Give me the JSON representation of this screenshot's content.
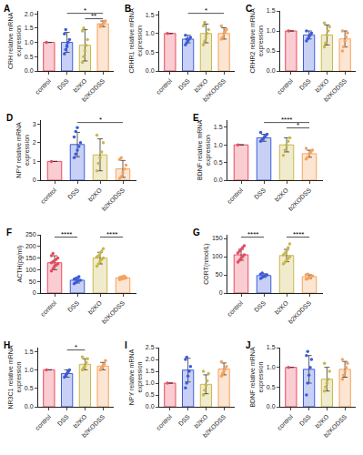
{
  "chart_data": [
    {
      "type": "bar",
      "label": "A",
      "y_label": "CRH relative mRNA expression",
      "categories": [
        "control",
        "DSS",
        "b2KO",
        "b2KODSS"
      ],
      "values": [
        1.0,
        1.0,
        0.9,
        1.65
      ],
      "errors": [
        0,
        0.35,
        0.55,
        0.1
      ],
      "points": [
        [
          1.0
        ],
        [
          0.6,
          0.75,
          0.85,
          1.0,
          1.1,
          1.3,
          1.45,
          0.9
        ],
        [
          0.3,
          0.5,
          0.7,
          0.9,
          1.1,
          1.4,
          1.5
        ],
        [
          1.55,
          1.6,
          1.65,
          1.7,
          1.75,
          1.6
        ]
      ],
      "colors": [
        "#e84a5f",
        "#3b5bdb",
        "#c9b84a",
        "#f5a25d"
      ],
      "marker": "circle",
      "grid": false,
      "ylim": [
        0,
        2.1
      ],
      "yticks": [
        {
          "value": 0,
          "label": "0.0"
        },
        {
          "value": 0.5,
          "label": "0.5"
        },
        {
          "value": 1,
          "label": "1.0"
        },
        {
          "value": 1.5,
          "label": "1.5"
        },
        {
          "value": 2,
          "label": "2.0"
        }
      ],
      "comparisons": [
        {
          "from": "b2KO",
          "to": "b2KODSS",
          "label": "**"
        },
        {
          "from": "DSS",
          "to": "b2KODSS",
          "label": "*"
        }
      ]
    },
    {
      "type": "bar",
      "label": "B",
      "y_label": "CRHR1 relative mRNA expression",
      "categories": [
        "control",
        "DSS",
        "b2KO",
        "b2KODSS"
      ],
      "values": [
        1.0,
        0.85,
        1.0,
        1.0
      ],
      "errors": [
        0,
        0.1,
        0.25,
        0.15
      ],
      "points": [
        [
          1.0
        ],
        [
          0.7,
          0.75,
          0.8,
          0.85,
          0.9,
          0.95,
          0.85
        ],
        [
          0.7,
          0.8,
          0.9,
          1.0,
          1.1,
          1.2,
          1.3
        ],
        [
          0.85,
          0.9,
          1.0,
          1.05,
          1.1,
          1.2
        ]
      ],
      "colors": [
        "#e84a5f",
        "#3b5bdb",
        "#c9b84a",
        "#f5a25d"
      ],
      "marker": "circle",
      "grid": false,
      "ylim": [
        0,
        1.6
      ],
      "yticks": [
        {
          "value": 0,
          "label": "0.0"
        },
        {
          "value": 0.5,
          "label": "0.5"
        },
        {
          "value": 1,
          "label": "1.0"
        },
        {
          "value": 1.5,
          "label": "1.5"
        }
      ],
      "comparisons": [
        {
          "from": "DSS",
          "to": "b2KODSS",
          "label": "*"
        }
      ]
    },
    {
      "type": "bar",
      "label": "C",
      "y_label": "CRHR2 relative mRNA expression",
      "categories": [
        "control",
        "DSS",
        "b2KO",
        "b2KODSS"
      ],
      "values": [
        1.0,
        0.9,
        0.9,
        0.8
      ],
      "errors": [
        0,
        0.1,
        0.25,
        0.2
      ],
      "points": [
        [
          1.0
        ],
        [
          0.75,
          0.8,
          0.85,
          0.9,
          0.95,
          1.0
        ],
        [
          0.6,
          0.7,
          0.9,
          1.0,
          1.1,
          1.2
        ],
        [
          0.5,
          0.6,
          0.75,
          0.85,
          0.95,
          1.0
        ]
      ],
      "colors": [
        "#e84a5f",
        "#3b5bdb",
        "#c9b84a",
        "#f5a25d"
      ],
      "marker": "circle",
      "grid": false,
      "ylim": [
        0,
        1.5
      ],
      "yticks": [
        {
          "value": 0,
          "label": "0.0"
        },
        {
          "value": 0.5,
          "label": "0.5"
        },
        {
          "value": 1,
          "label": "1.0"
        },
        {
          "value": 1.5,
          "label": "1.5"
        }
      ],
      "comparisons": []
    },
    {
      "type": "bar",
      "label": "D",
      "y_label": "NPY relative mRNA expression",
      "categories": [
        "control",
        "DSS",
        "b2KO",
        "b2KODSS"
      ],
      "values": [
        1.0,
        1.9,
        1.35,
        0.6
      ],
      "errors": [
        0,
        0.65,
        0.85,
        0.45
      ],
      "points": [
        [
          1.0
        ],
        [
          1.2,
          1.4,
          1.6,
          1.8,
          2.0,
          2.3,
          2.6,
          2.8
        ],
        [
          0.5,
          0.9,
          1.2,
          1.5,
          2.0,
          2.4
        ],
        [
          0.1,
          0.2,
          0.4,
          0.6,
          0.8,
          1.1,
          1.2
        ]
      ],
      "colors": [
        "#e84a5f",
        "#3b5bdb",
        "#c9b84a",
        "#f5a25d"
      ],
      "marker": "circle",
      "grid": false,
      "ylim": [
        0,
        3.2
      ],
      "yticks": [
        0,
        1,
        2,
        3
      ],
      "comparisons": [
        {
          "from": "DSS",
          "to": "b2KODSS",
          "label": "*"
        }
      ]
    },
    {
      "type": "bar",
      "label": "E",
      "y_label": "BDNF relative mRNA expression",
      "categories": [
        "control",
        "DSS",
        "b2KO",
        "b2KODSS"
      ],
      "values": [
        1.0,
        1.2,
        1.0,
        0.75
      ],
      "errors": [
        0,
        0.1,
        0.2,
        0.1
      ],
      "points": [
        [
          1.0
        ],
        [
          1.1,
          1.15,
          1.2,
          1.25,
          1.3,
          1.35
        ],
        [
          0.7,
          0.85,
          1.0,
          1.1,
          1.2
        ],
        [
          0.6,
          0.65,
          0.75,
          0.8,
          0.85,
          0.9
        ]
      ],
      "colors": [
        "#e84a5f",
        "#3b5bdb",
        "#c9b84a",
        "#f5a25d"
      ],
      "marker": "circle",
      "grid": false,
      "ylim": [
        0,
        1.7
      ],
      "yticks": [
        {
          "value": 0,
          "label": "0.0"
        },
        {
          "value": 0.5,
          "label": "0.5"
        },
        {
          "value": 1,
          "label": "1.0"
        },
        {
          "value": 1.5,
          "label": "1.5"
        }
      ],
      "comparisons": [
        {
          "from": "b2KO",
          "to": "b2KODSS",
          "label": "*"
        },
        {
          "from": "DSS",
          "to": "b2KODSS",
          "label": "****"
        }
      ]
    },
    {
      "type": "bar",
      "label": "F",
      "y_label": "ACTH(pg/ml)",
      "categories": [
        "control",
        "DSS",
        "b2KO",
        "b2KODSS"
      ],
      "values": [
        130,
        55,
        150,
        65
      ],
      "errors": [
        30,
        12,
        25,
        5
      ],
      "points": [
        [
          95,
          105,
          115,
          120,
          125,
          130,
          135,
          140,
          145,
          150,
          160,
          170
        ],
        [
          40,
          45,
          50,
          55,
          55,
          60,
          60,
          65,
          70
        ],
        [
          115,
          125,
          135,
          145,
          150,
          155,
          160,
          170,
          180,
          190
        ],
        [
          58,
          60,
          62,
          64,
          65,
          66,
          68,
          70,
          72
        ]
      ],
      "colors": [
        "#e84a5f",
        "#3b5bdb",
        "#c9b84a",
        "#f5a25d"
      ],
      "marker": "circle",
      "grid": false,
      "ylim": [
        0,
        250
      ],
      "yticks": [
        0,
        50,
        100,
        150,
        200,
        250
      ],
      "comparisons": [
        {
          "from": "control",
          "to": "DSS",
          "label": "****"
        },
        {
          "from": "b2KO",
          "to": "b2KODSS",
          "label": "****"
        }
      ]
    },
    {
      "type": "bar",
      "label": "G",
      "y_label": "CORT(nmol/L)",
      "categories": [
        "control",
        "DSS",
        "b2KO",
        "b2KODSS"
      ],
      "values": [
        105,
        48,
        103,
        45
      ],
      "errors": [
        15,
        5,
        17,
        5
      ],
      "points": [
        [
          85,
          90,
          95,
          100,
          105,
          110,
          115,
          120,
          125,
          130
        ],
        [
          40,
          43,
          46,
          48,
          50,
          52,
          55
        ],
        [
          80,
          85,
          90,
          95,
          100,
          105,
          110,
          115,
          125,
          135
        ],
        [
          38,
          40,
          42,
          45,
          47,
          50,
          52
        ]
      ],
      "colors": [
        "#e84a5f",
        "#3b5bdb",
        "#c9b84a",
        "#f5a25d"
      ],
      "marker": "circle",
      "grid": false,
      "ylim": [
        0,
        160
      ],
      "yticks": [
        0,
        50,
        100,
        150
      ],
      "comparisons": [
        {
          "from": "control",
          "to": "DSS",
          "label": "****"
        },
        {
          "from": "b2KO",
          "to": "b2KODSS",
          "label": "****"
        }
      ]
    },
    {
      "type": "bar",
      "label": "H",
      "y_label": "NR3C1 relative mRNA expression",
      "categories": [
        "control",
        "DSS",
        "b2KO",
        "b2KODSS"
      ],
      "values": [
        1.0,
        0.9,
        1.15,
        1.1
      ],
      "errors": [
        0,
        0.1,
        0.15,
        0.1
      ],
      "points": [
        [
          1.0
        ],
        [
          0.8,
          0.85,
          0.9,
          0.95,
          1.0
        ],
        [
          1.0,
          1.05,
          1.1,
          1.2,
          1.3,
          1.35
        ],
        [
          1.0,
          1.05,
          1.1,
          1.15,
          1.25
        ]
      ],
      "colors": [
        "#e84a5f",
        "#3b5bdb",
        "#c9b84a",
        "#f5a25d"
      ],
      "marker": "circle",
      "grid": false,
      "ylim": [
        0,
        1.6
      ],
      "yticks": [
        {
          "value": 0,
          "label": "0.0"
        },
        {
          "value": 0.5,
          "label": "0.5"
        },
        {
          "value": 1,
          "label": "1.0"
        },
        {
          "value": 1.5,
          "label": "1.5"
        }
      ],
      "comparisons": [
        {
          "from": "DSS",
          "to": "b2KO",
          "label": "*"
        }
      ]
    },
    {
      "type": "bar",
      "label": "I",
      "y_label": "NPY relative mRNA expression",
      "categories": [
        "control",
        "DSS",
        "b2KO",
        "b2KODSS"
      ],
      "values": [
        1.0,
        1.55,
        0.95,
        1.6
      ],
      "errors": [
        0,
        0.5,
        0.4,
        0.25
      ],
      "points": [
        [
          1.0
        ],
        [
          0.8,
          1.0,
          1.3,
          1.5,
          1.7,
          2.0,
          2.1
        ],
        [
          0.5,
          0.7,
          0.9,
          1.1,
          1.4,
          1.5
        ],
        [
          1.3,
          1.4,
          1.5,
          1.6,
          1.7,
          1.9
        ]
      ],
      "colors": [
        "#e84a5f",
        "#3b5bdb",
        "#c9b84a",
        "#f5a25d"
      ],
      "marker": "circle",
      "grid": false,
      "ylim": [
        0,
        2.5
      ],
      "yticks": [
        {
          "value": 0,
          "label": "0.0"
        },
        {
          "value": 0.5,
          "label": "0.5"
        },
        {
          "value": 1,
          "label": "1.0"
        },
        {
          "value": 1.5,
          "label": "1.5"
        },
        {
          "value": 2,
          "label": "2.0"
        },
        {
          "value": 2.5,
          "label": "2.5"
        }
      ],
      "comparisons": []
    },
    {
      "type": "bar",
      "label": "J",
      "y_label": "BDNF relative mRNA expression",
      "categories": [
        "control",
        "DSS",
        "b2KO",
        "b2KODSS"
      ],
      "values": [
        1.0,
        0.95,
        0.7,
        0.95
      ],
      "errors": [
        0,
        0.35,
        0.3,
        0.2
      ],
      "points": [
        [
          1.0
        ],
        [
          0.3,
          0.6,
          0.8,
          1.0,
          1.2,
          1.3,
          1.4
        ],
        [
          0.4,
          0.5,
          0.6,
          0.7,
          0.9,
          1.1
        ],
        [
          0.7,
          0.8,
          0.9,
          1.0,
          1.1,
          1.2
        ]
      ],
      "colors": [
        "#e84a5f",
        "#3b5bdb",
        "#c9b84a",
        "#f5a25d"
      ],
      "marker": "circle",
      "grid": false,
      "ylim": [
        0,
        1.5
      ],
      "yticks": [
        {
          "value": 0,
          "label": "0.0"
        },
        {
          "value": 0.5,
          "label": "0.5"
        },
        {
          "value": 1,
          "label": "1.0"
        },
        {
          "value": 1.5,
          "label": "1.5"
        }
      ],
      "comparisons": []
    }
  ]
}
